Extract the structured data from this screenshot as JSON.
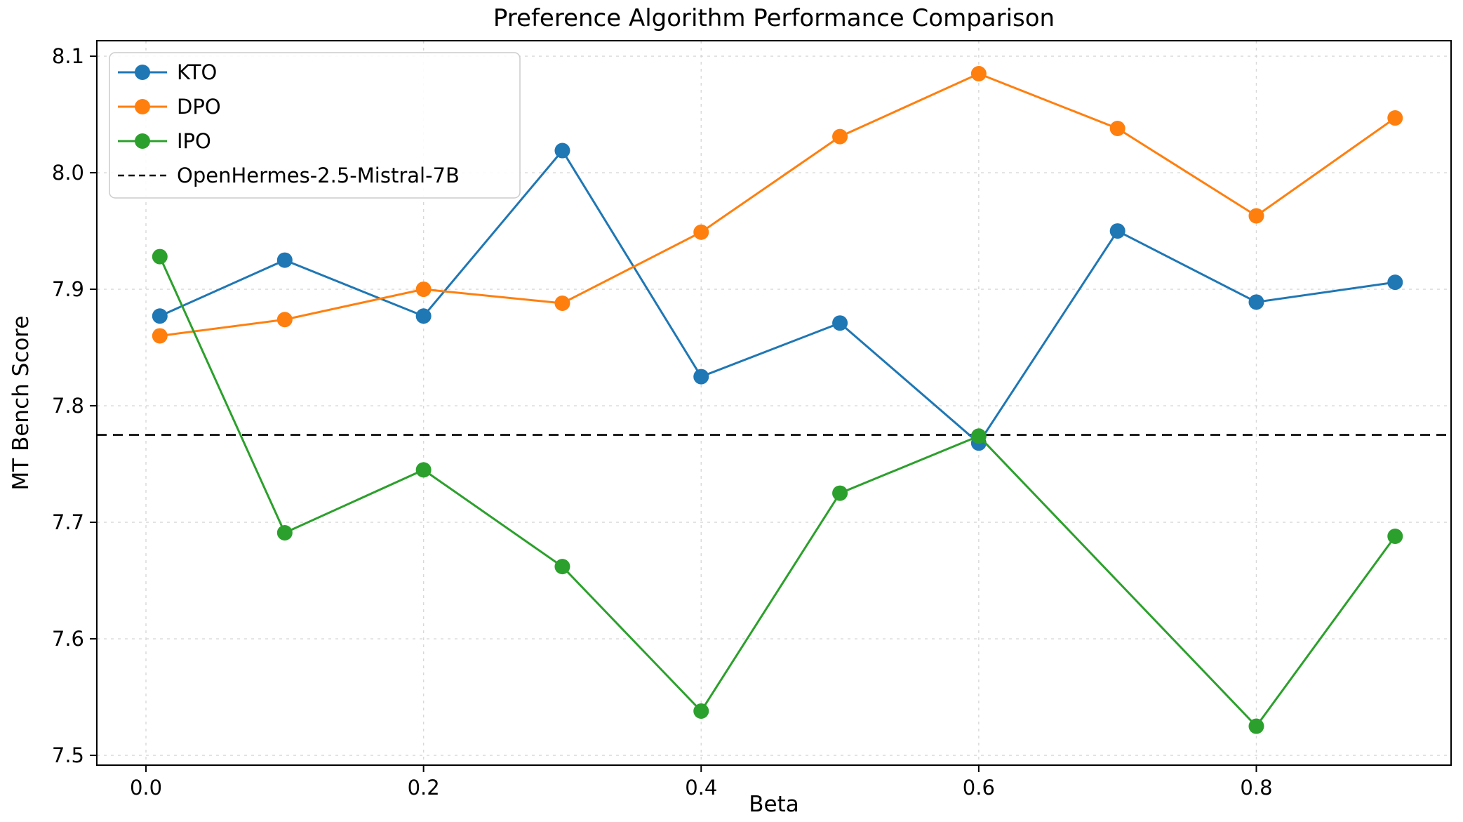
{
  "chart_data": {
    "type": "line",
    "title": "Preference Algorithm Performance Comparison",
    "xlabel": "Beta",
    "ylabel": "MT Bench Score",
    "x": [
      0.01,
      0.1,
      0.2,
      0.3,
      0.4,
      0.5,
      0.6,
      0.7,
      0.8,
      0.9
    ],
    "series": [
      {
        "name": "KTO",
        "color": "#1f77b4",
        "values": [
          7.877,
          7.925,
          7.877,
          8.019,
          7.825,
          7.871,
          7.768,
          7.95,
          7.889,
          7.906
        ]
      },
      {
        "name": "DPO",
        "color": "#ff7f0e",
        "values": [
          7.86,
          7.874,
          7.9,
          7.888,
          7.949,
          8.031,
          8.085,
          8.038,
          7.963,
          8.047
        ]
      },
      {
        "name": "IPO",
        "color": "#2ca02c",
        "values": [
          7.928,
          7.691,
          7.745,
          7.662,
          7.538,
          7.725,
          7.774,
          null,
          7.525,
          7.688
        ]
      }
    ],
    "baseline": {
      "label": "OpenHermes-2.5-Mistral-7B",
      "value": 7.775,
      "color": "#000000",
      "style": "dashed"
    },
    "xticks": [
      0.0,
      0.2,
      0.4,
      0.6,
      0.8
    ],
    "yticks": [
      7.5,
      7.6,
      7.7,
      7.8,
      7.9,
      8.0,
      8.1
    ],
    "xlim": [
      -0.0354,
      0.9403
    ],
    "ylim": [
      7.4916,
      8.1133
    ],
    "grid": true,
    "legend_position": "upper-left",
    "colors": {
      "grid": "#d8d8d8",
      "spine": "#000000",
      "legend_border": "#cccccc"
    }
  }
}
